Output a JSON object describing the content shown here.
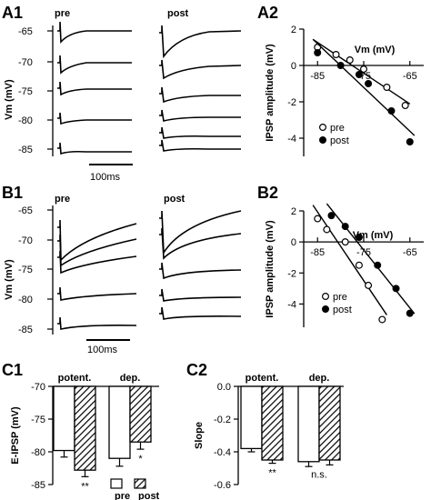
{
  "panels": {
    "A1": {
      "label": "A1",
      "pre_label": "pre",
      "post_label": "post",
      "ylabel": "Vm (mV)",
      "yticks": [
        "-65",
        "-70",
        "-75",
        "-80",
        "-85"
      ],
      "scalebar": "100ms"
    },
    "B1": {
      "label": "B1",
      "pre_label": "pre",
      "post_label": "post",
      "ylabel": "Vm (mV)",
      "yticks": [
        "-65",
        "-70",
        "-75",
        "-80",
        "-85"
      ],
      "scalebar": "100ms"
    },
    "A2": {
      "label": "A2"
    },
    "B2": {
      "label": "B2"
    },
    "C1": {
      "label": "C1",
      "group_potent": "potent.",
      "group_dep": "dep.",
      "legend_pre": "pre",
      "legend_post": "post"
    },
    "C2": {
      "label": "C2",
      "group_potent": "potent.",
      "group_dep": "dep."
    }
  },
  "chart_data": [
    {
      "id": "A2",
      "type": "scatter",
      "xlabel": "Vm (mV)",
      "ylabel": "IPSP amplitude (mV)",
      "xlim": [
        -88,
        -62
      ],
      "ylim": [
        -5,
        2
      ],
      "xticks": [
        -85,
        -75,
        -65
      ],
      "yticks": [
        2,
        0,
        -2,
        -4
      ],
      "legend": "bottom-left",
      "series": [
        {
          "name": "pre",
          "marker": "open",
          "x": [
            -85,
            -81,
            -78,
            -75,
            -70,
            -66
          ],
          "y": [
            1.0,
            0.6,
            0.3,
            -0.2,
            -1.2,
            -2.2
          ]
        },
        {
          "name": "post",
          "marker": "filled",
          "x": [
            -85,
            -80,
            -76,
            -74,
            -69,
            -65
          ],
          "y": [
            0.7,
            0.0,
            -0.5,
            -1.0,
            -2.5,
            -4.2
          ]
        }
      ]
    },
    {
      "id": "B2",
      "type": "scatter",
      "xlabel": "Vm (mV)",
      "ylabel": "IPSP amplitude (mV)",
      "xlim": [
        -88,
        -62
      ],
      "ylim": [
        -5.5,
        2
      ],
      "xticks": [
        -85,
        -75,
        -65
      ],
      "yticks": [
        2,
        0,
        -2,
        -4
      ],
      "legend": "bottom-right",
      "series": [
        {
          "name": "pre",
          "marker": "open",
          "x": [
            -85,
            -83,
            -79,
            -76,
            -74,
            -71
          ],
          "y": [
            1.5,
            0.8,
            0.0,
            -1.5,
            -2.8,
            -5.0
          ]
        },
        {
          "name": "post",
          "marker": "filled",
          "x": [
            -82,
            -79,
            -76,
            -72,
            -68,
            -65
          ],
          "y": [
            1.7,
            1.0,
            0.3,
            -1.5,
            -3.0,
            -4.6
          ]
        }
      ]
    },
    {
      "id": "C1",
      "type": "bar",
      "ylabel": "E-IPSP (mV)",
      "ylim": [
        -85,
        -70
      ],
      "yticks": [
        -70,
        -75,
        -80,
        -85
      ],
      "categories": [
        "potent.",
        "dep."
      ],
      "legend": "bottom",
      "series": [
        {
          "name": "pre",
          "values": [
            -79.8,
            -81.0
          ],
          "errors": [
            1.0,
            1.2
          ]
        },
        {
          "name": "post",
          "values": [
            -82.8,
            -78.5
          ],
          "errors": [
            1.0,
            1.1
          ]
        }
      ],
      "annotations": [
        "**",
        "*"
      ]
    },
    {
      "id": "C2",
      "type": "bar",
      "ylabel": "Slope",
      "ylim": [
        -0.6,
        0.0
      ],
      "yticks": [
        "0.0",
        "-0.2",
        "-0.4",
        "-0.6"
      ],
      "categories": [
        "potent.",
        "dep."
      ],
      "series": [
        {
          "name": "pre",
          "values": [
            -0.38,
            -0.46
          ],
          "errors": [
            0.02,
            0.03
          ]
        },
        {
          "name": "post",
          "values": [
            -0.45,
            -0.45
          ],
          "errors": [
            0.02,
            0.03
          ]
        }
      ],
      "annotations": [
        "**",
        "n.s."
      ]
    }
  ]
}
